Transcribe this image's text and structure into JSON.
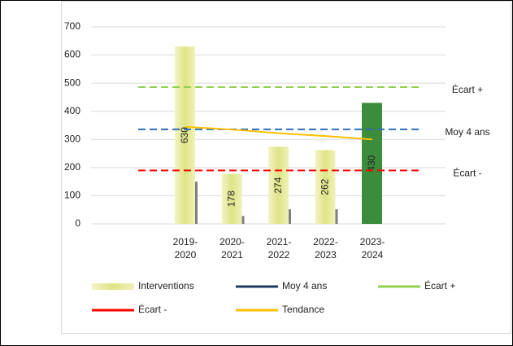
{
  "chart_data": {
    "type": "bar",
    "categories": [
      "2019-2020",
      "2020-2021",
      "2021-2022",
      "2022-2023",
      "2023-2024"
    ],
    "ylim": [
      0,
      700
    ],
    "yticks": [
      0,
      100,
      200,
      300,
      400,
      500,
      600,
      700
    ],
    "grid": true,
    "series": [
      {
        "name": "Interventions",
        "type": "bar",
        "color": "#e3e68f",
        "colors": [
          "#e3e68f",
          "#e3e68f",
          "#e3e68f",
          "#e3e68f",
          "#3b8c3b"
        ],
        "values": [
          630,
          178,
          274,
          262,
          430
        ]
      },
      {
        "type": "thin-bar",
        "color": "#7f7f7f",
        "values": [
          150,
          28,
          52,
          52,
          null
        ]
      },
      {
        "name": "Moy 4 ans",
        "type": "hline",
        "color": "#2f6eba",
        "legend_color": "#1f3864",
        "dashed": true,
        "value": 336
      },
      {
        "name": "Écart +",
        "type": "hline",
        "color": "#92d050",
        "dashed": true,
        "value": 486
      },
      {
        "name": "Écart -",
        "type": "hline",
        "color": "#ff0000",
        "dashed": true,
        "value": 190
      },
      {
        "name": "Tendance",
        "type": "line",
        "color": "#ffc000",
        "values": [
          345,
          335,
          322,
          312,
          300
        ]
      }
    ]
  }
}
